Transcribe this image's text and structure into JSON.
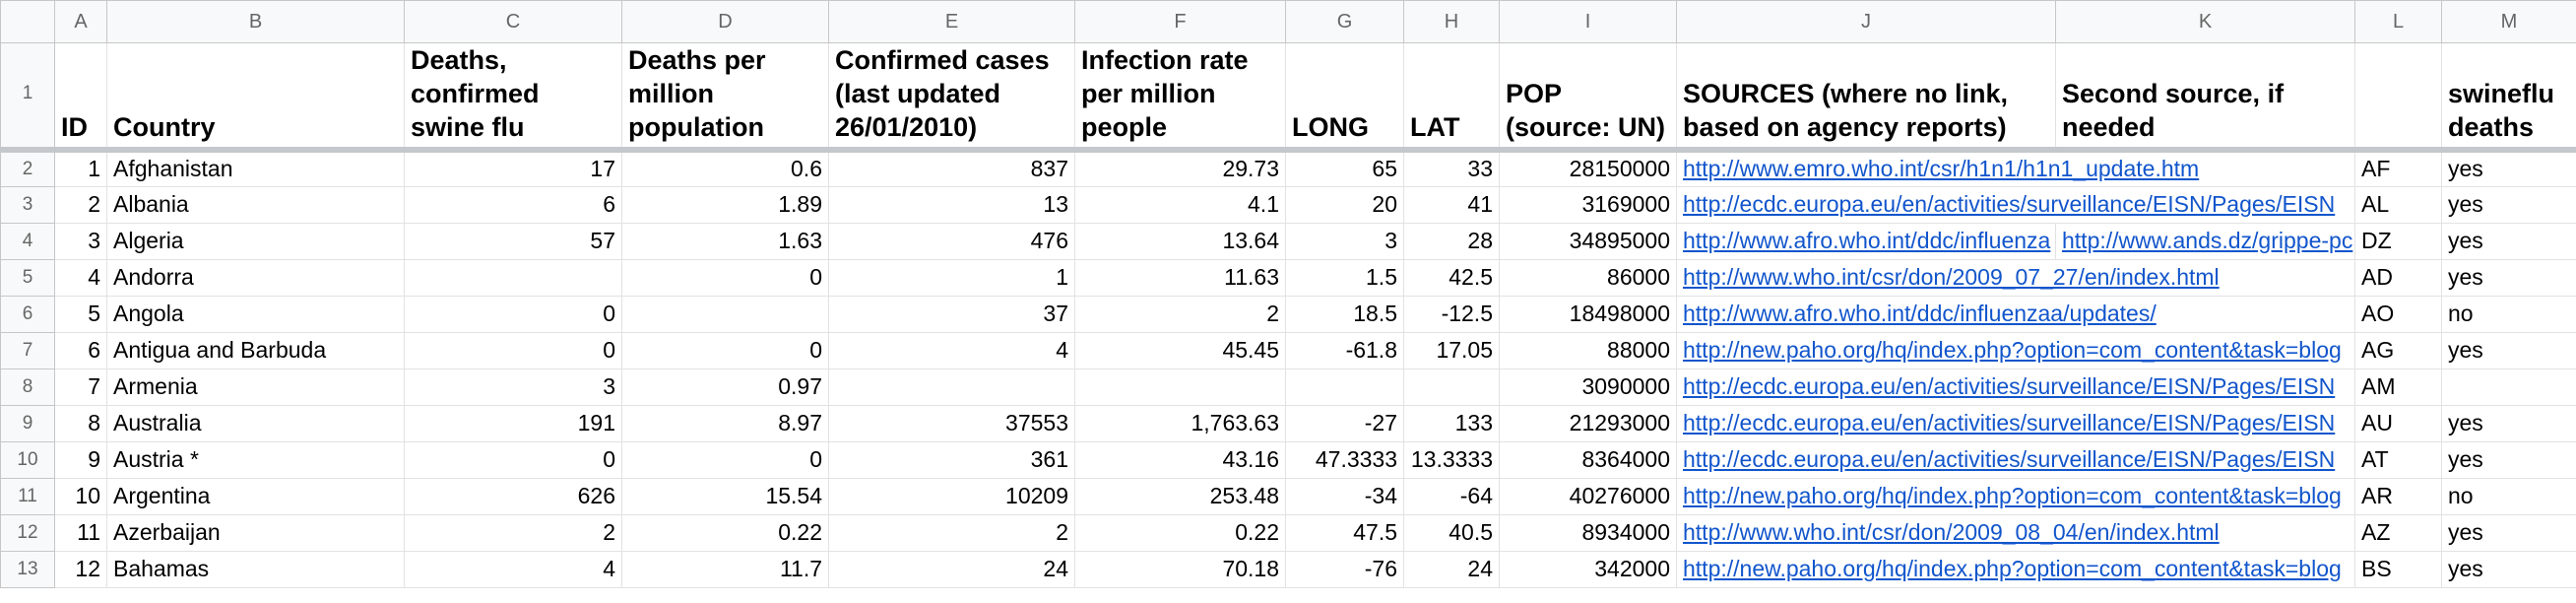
{
  "column_letters": [
    "A",
    "B",
    "C",
    "D",
    "E",
    "F",
    "G",
    "H",
    "I",
    "J",
    "K",
    "L",
    "M"
  ],
  "row_numbers": [
    1,
    2,
    3,
    4,
    5,
    6,
    7,
    8,
    9,
    10,
    11,
    12,
    13
  ],
  "header": [
    "ID",
    "Country",
    "Deaths, confirmed swine flu",
    "Deaths per million population",
    "Confirmed cases (last updated 26/01/2010)",
    "Infection rate per million people",
    "LONG",
    "LAT",
    "POP (source: UN)",
    "SOURCES (where no link, based on agency reports)",
    "Second source, if needed",
    null,
    "swineflu deaths"
  ],
  "rows": [
    [
      "1",
      "Afghanistan",
      "17",
      "0.6",
      "837",
      "29.73",
      "65",
      "33",
      "28150000",
      "http://www.emro.who.int/csr/h1n1/h1n1_update.htm",
      null,
      "AF",
      "yes"
    ],
    [
      "2",
      "Albania",
      "6",
      "1.89",
      "13",
      "4.1",
      "20",
      "41",
      "3169000",
      "http://ecdc.europa.eu/en/activities/surveillance/EISN/Pages/EISN",
      null,
      "AL",
      "yes"
    ],
    [
      "3",
      "Algeria",
      "57",
      "1.63",
      "476",
      "13.64",
      "3",
      "28",
      "34895000",
      "http://www.afro.who.int/ddc/influenza",
      "http://www.ands.dz/grippe-pc",
      "DZ",
      "yes"
    ],
    [
      "4",
      "Andorra",
      null,
      "0",
      "1",
      "11.63",
      "1.5",
      "42.5",
      "86000",
      "http://www.who.int/csr/don/2009_07_27/en/index.html",
      null,
      "AD",
      "yes"
    ],
    [
      "5",
      "Angola",
      "0",
      null,
      "37",
      "2",
      "18.5",
      "-12.5",
      "18498000",
      "http://www.afro.who.int/ddc/influenzaa/updates/",
      null,
      "AO",
      "no"
    ],
    [
      "6",
      "Antigua and Barbuda",
      "0",
      "0",
      "4",
      "45.45",
      "-61.8",
      "17.05",
      "88000",
      "http://new.paho.org/hq/index.php?option=com_content&task=blog",
      null,
      "AG",
      "yes"
    ],
    [
      "7",
      "Armenia",
      "3",
      "0.97",
      null,
      null,
      null,
      null,
      "3090000",
      "http://ecdc.europa.eu/en/activities/surveillance/EISN/Pages/EISN",
      null,
      "AM",
      null
    ],
    [
      "8",
      "Australia",
      "191",
      "8.97",
      "37553",
      "1,763.63",
      "-27",
      "133",
      "21293000",
      "http://ecdc.europa.eu/en/activities/surveillance/EISN/Pages/EISN",
      null,
      "AU",
      "yes"
    ],
    [
      "9",
      "Austria *",
      "0",
      "0",
      "361",
      "43.16",
      "47.3333",
      "13.3333",
      "8364000",
      "http://ecdc.europa.eu/en/activities/surveillance/EISN/Pages/EISN",
      null,
      "AT",
      "yes"
    ],
    [
      "10",
      "Argentina",
      "626",
      "15.54",
      "10209",
      "253.48",
      "-34",
      "-64",
      "40276000",
      "http://new.paho.org/hq/index.php?option=com_content&task=blog",
      null,
      "AR",
      "no"
    ],
    [
      "11",
      "Azerbaijan",
      "2",
      "0.22",
      "2",
      "0.22",
      "47.5",
      "40.5",
      "8934000",
      "http://www.who.int/csr/don/2009_08_04/en/index.html",
      null,
      "AZ",
      "yes"
    ],
    [
      "12",
      "Bahamas",
      "4",
      "11.7",
      "24",
      "70.18",
      "-76",
      "24",
      "342000",
      "http://new.paho.org/hq/index.php?option=com_content&task=blog",
      null,
      "BS",
      "yes"
    ]
  ]
}
